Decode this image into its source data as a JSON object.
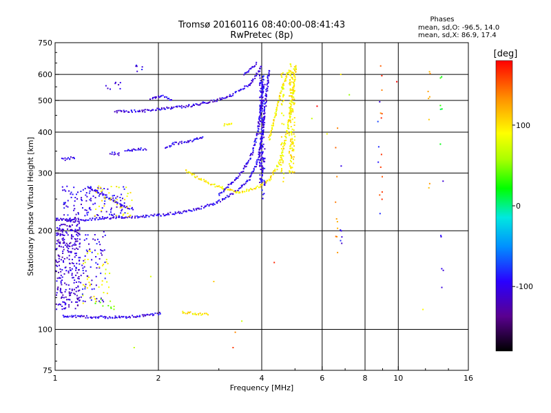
{
  "header": {
    "title_line1": "Tromsø 20160116 08:40:00-08:41:43",
    "title_line2": "RwPretec (8p)",
    "stats_title": "Phases",
    "stats_line1": "mean, sd,O: -96.5, 14.0",
    "stats_line2": "mean, sd,X:  86.9, 17.4"
  },
  "chart_data": {
    "type": "scatter",
    "xlabel": "Frequency [MHz]",
    "ylabel": "Stationary phase Virtual Height [km]",
    "xscale": "log",
    "yscale": "log",
    "xlim": [
      1,
      16
    ],
    "ylim": [
      75,
      750
    ],
    "x_ticks": [
      1,
      2,
      4,
      6,
      8,
      10,
      16
    ],
    "x_tick_labels": [
      "1",
      "2",
      "4",
      "6",
      "8",
      "10",
      "16"
    ],
    "x_grid": [
      2,
      4,
      6,
      8,
      10
    ],
    "y_ticks": [
      75,
      100,
      200,
      300,
      400,
      500,
      600,
      750
    ],
    "y_tick_labels": [
      "75",
      "100",
      "200",
      "300",
      "400",
      "500",
      "600",
      "750"
    ],
    "y_grid": [
      100,
      200,
      300,
      400,
      500,
      600
    ],
    "colorbar": {
      "label": "[deg]",
      "range": [
        -180,
        180
      ],
      "ticks": [
        100,
        0,
        -100
      ],
      "tick_labels": [
        "100",
        "0",
        "-100"
      ]
    },
    "traces": [
      {
        "kind": "curve",
        "phase": -100,
        "points": [
          [
            1.0,
            217
          ],
          [
            1.2,
            216
          ],
          [
            1.5,
            219
          ],
          [
            2.0,
            223
          ],
          [
            2.5,
            230
          ],
          [
            3.0,
            245
          ],
          [
            3.4,
            265
          ],
          [
            3.7,
            290
          ],
          [
            3.9,
            330
          ],
          [
            4.05,
            420
          ],
          [
            4.15,
            550
          ],
          [
            4.2,
            620
          ]
        ]
      },
      {
        "kind": "curve",
        "phase": 95,
        "points": [
          [
            2.4,
            305
          ],
          [
            2.7,
            285
          ],
          [
            3.0,
            272
          ],
          [
            3.4,
            262
          ],
          [
            3.8,
            268
          ],
          [
            4.2,
            285
          ],
          [
            4.5,
            320
          ],
          [
            4.75,
            400
          ],
          [
            4.9,
            500
          ],
          [
            5.0,
            600
          ],
          [
            5.05,
            640
          ]
        ]
      },
      {
        "kind": "curve",
        "phase": -100,
        "points": [
          [
            3.0,
            258
          ],
          [
            3.4,
            290
          ],
          [
            3.7,
            330
          ],
          [
            3.9,
            400
          ],
          [
            4.0,
            500
          ],
          [
            4.05,
            600
          ]
        ]
      },
      {
        "kind": "curve",
        "phase": 95,
        "points": [
          [
            4.2,
            380
          ],
          [
            4.4,
            460
          ],
          [
            4.6,
            550
          ],
          [
            4.8,
            620
          ]
        ]
      },
      {
        "kind": "curve",
        "phase": -105,
        "points": [
          [
            1.5,
            462
          ],
          [
            1.8,
            464
          ],
          [
            2.1,
            472
          ],
          [
            2.5,
            482
          ],
          [
            2.9,
            498
          ],
          [
            3.3,
            520
          ],
          [
            3.7,
            560
          ],
          [
            3.9,
            610
          ],
          [
            4.0,
            640
          ]
        ]
      },
      {
        "kind": "curve",
        "phase": -105,
        "points": [
          [
            1.05,
            110
          ],
          [
            1.3,
            109
          ],
          [
            1.6,
            109
          ],
          [
            1.8,
            110
          ],
          [
            2.05,
            112
          ]
        ]
      },
      {
        "kind": "curve",
        "phase": 95,
        "points": [
          [
            2.35,
            113
          ],
          [
            2.55,
            112
          ],
          [
            2.8,
            111
          ]
        ]
      },
      {
        "kind": "curve",
        "phase": -100,
        "points": [
          [
            3.55,
            600
          ],
          [
            3.75,
            630
          ],
          [
            3.9,
            650
          ]
        ]
      },
      {
        "kind": "curve",
        "phase": -100,
        "points": [
          [
            1.25,
            272
          ],
          [
            1.35,
            260
          ],
          [
            1.45,
            250
          ],
          [
            1.55,
            240
          ],
          [
            1.7,
            232
          ]
        ]
      },
      {
        "kind": "curve",
        "phase": -100,
        "points": [
          [
            1.6,
            352
          ],
          [
            1.75,
            354
          ],
          [
            1.85,
            356
          ]
        ]
      },
      {
        "kind": "curve",
        "phase": -100,
        "points": [
          [
            1.45,
            345
          ],
          [
            1.55,
            342
          ]
        ]
      },
      {
        "kind": "curve",
        "phase": -100,
        "points": [
          [
            2.2,
            368
          ],
          [
            2.45,
            375
          ],
          [
            2.7,
            385
          ]
        ]
      },
      {
        "kind": "curve",
        "phase": -100,
        "points": [
          [
            2.1,
            360
          ],
          [
            2.2,
            362
          ]
        ]
      },
      {
        "kind": "curve",
        "phase": -100,
        "points": [
          [
            1.9,
            505
          ],
          [
            2.05,
            515
          ],
          [
            2.2,
            500
          ]
        ]
      },
      {
        "kind": "curve",
        "phase": -105,
        "points": [
          [
            1.05,
            330
          ],
          [
            1.15,
            335
          ]
        ]
      },
      {
        "kind": "curve",
        "phase": 95,
        "points": [
          [
            3.1,
            420
          ],
          [
            3.3,
            422
          ]
        ]
      },
      {
        "kind": "cloud",
        "phase": -110,
        "x": [
          1.0,
          1.18
        ],
        "y": [
          115,
          220
        ],
        "n": 260
      },
      {
        "kind": "cloud",
        "phase": -100,
        "x": [
          1.15,
          1.4
        ],
        "y": [
          120,
          200
        ],
        "n": 90
      },
      {
        "kind": "cloud",
        "phase": 90,
        "x": [
          1.2,
          1.45
        ],
        "y": [
          120,
          175
        ],
        "n": 40
      },
      {
        "kind": "cloud",
        "phase": -100,
        "x": [
          1.05,
          1.6
        ],
        "y": [
          220,
          275
        ],
        "n": 120
      },
      {
        "kind": "cloud",
        "phase": 90,
        "x": [
          1.3,
          1.7
        ],
        "y": [
          220,
          275
        ],
        "n": 40
      },
      {
        "kind": "cloud",
        "phase": -110,
        "x": [
          1.0,
          1.15
        ],
        "y": [
          175,
          215
        ],
        "n": 30
      },
      {
        "kind": "cloud",
        "phase": -100,
        "x": [
          1.4,
          1.55
        ],
        "y": [
          540,
          570
        ],
        "n": 8
      },
      {
        "kind": "cloud",
        "phase": -100,
        "x": [
          1.72,
          1.82
        ],
        "y": [
          610,
          640
        ],
        "n": 6
      },
      {
        "kind": "cloud",
        "phase": 45,
        "x": [
          1.3,
          1.5
        ],
        "y": [
          115,
          125
        ],
        "n": 10
      },
      {
        "kind": "column",
        "phase": -100,
        "x": 3.98,
        "y": [
          280,
          600
        ],
        "n": 90
      },
      {
        "kind": "column",
        "phase": -100,
        "x": 4.05,
        "y": [
          250,
          560
        ],
        "n": 60
      },
      {
        "kind": "column",
        "phase": 95,
        "x": 4.85,
        "y": [
          300,
          650
        ],
        "n": 80
      },
      {
        "kind": "column",
        "phase": 95,
        "x": 4.95,
        "y": [
          300,
          640
        ],
        "n": 60
      },
      {
        "kind": "column",
        "phase": 95,
        "x": 4.6,
        "y": [
          280,
          620
        ],
        "n": 40
      },
      {
        "kind": "column",
        "phase": 140,
        "x": 6.6,
        "y": [
          170,
          470
        ],
        "n": 10
      },
      {
        "kind": "column",
        "phase": -100,
        "x": 6.8,
        "y": [
          170,
          330
        ],
        "n": 6
      },
      {
        "kind": "column",
        "phase": 150,
        "x": 8.9,
        "y": [
          220,
          640
        ],
        "n": 12
      },
      {
        "kind": "column",
        "phase": -90,
        "x": 8.8,
        "y": [
          220,
          520
        ],
        "n": 5
      },
      {
        "kind": "column",
        "phase": 130,
        "x": 12.3,
        "y": [
          260,
          620
        ],
        "n": 8
      },
      {
        "kind": "column",
        "phase": 20,
        "x": 13.3,
        "y": [
          330,
          600
        ],
        "n": 6
      },
      {
        "kind": "column",
        "phase": -110,
        "x": 13.4,
        "y": [
          125,
          550
        ],
        "n": 6
      },
      {
        "kind": "points",
        "phase": 120,
        "p": [
          [
            2.9,
            140
          ],
          [
            3.5,
            106
          ],
          [
            4.35,
            160
          ],
          [
            5.6,
            440
          ],
          [
            5.8,
            480
          ],
          [
            6.2,
            395
          ],
          [
            7.2,
            520
          ],
          [
            9.9,
            570
          ],
          [
            11.8,
            115
          ],
          [
            3.3,
            88
          ],
          [
            1.7,
            88
          ],
          [
            3.35,
            98
          ],
          [
            1.9,
            145
          ],
          [
            6.8,
            600
          ]
        ]
      }
    ]
  }
}
